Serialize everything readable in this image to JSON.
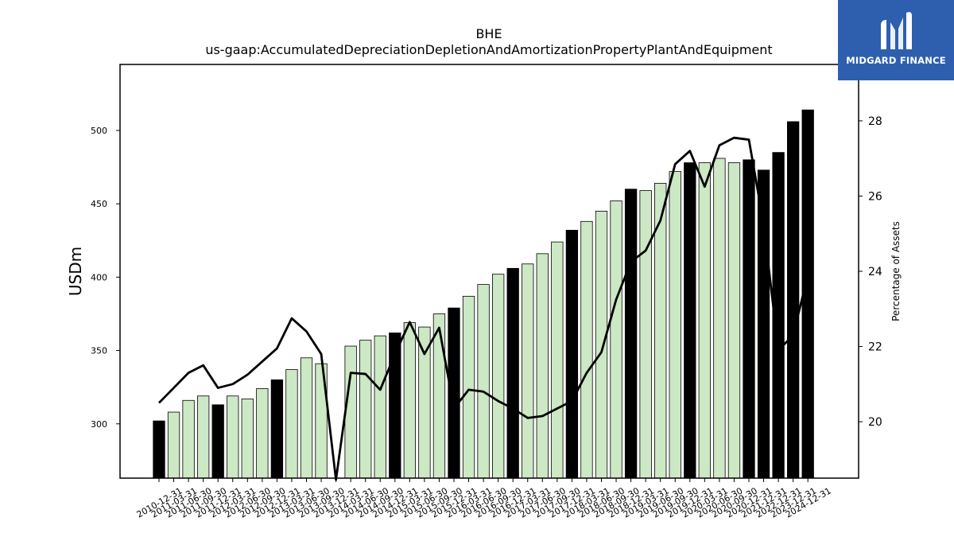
{
  "chart_data": {
    "type": "bar",
    "title": "BHE",
    "subtitle": "us-gaap:AccumulatedDepreciationDepletionAndAmortizationPropertyPlantAndEquipment",
    "ylabel": "USDm",
    "y2label": "Percentage of Assets",
    "ylim": [
      263,
      545
    ],
    "y2lim": [
      18.5,
      29.5
    ],
    "yticks": [
      300,
      350,
      400,
      450,
      500
    ],
    "y2ticks": [
      20,
      22,
      24,
      26,
      28
    ],
    "grid": false,
    "categories": [
      "2010-12-31",
      "2011-03-31",
      "2011-06-30",
      "2011-09-30",
      "2011-12-31",
      "2012-03-31",
      "2012-06-30",
      "2012-09-30",
      "2012-12-31",
      "2013-03-31",
      "2013-06-30",
      "2013-09-30",
      "2013-12-31",
      "2014-03-31",
      "2014-06-30",
      "2014-09-30",
      "2014-12-31",
      "2015-03-31",
      "2015-06-30",
      "2015-09-30",
      "2015-12-31",
      "2016-03-31",
      "2016-06-30",
      "2016-09-30",
      "2016-12-31",
      "2017-03-31",
      "2017-06-30",
      "2017-09-30",
      "2017-12-31",
      "2018-03-31",
      "2018-06-30",
      "2018-09-30",
      "2018-12-31",
      "2019-03-31",
      "2019-06-30",
      "2019-09-30",
      "2019-12-31",
      "2020-03-31",
      "2020-06-30",
      "2020-09-30",
      "2020-12-31",
      "2021-12-31",
      "2022-12-31",
      "2023-12-31",
      "2024-12-31"
    ],
    "series": [
      {
        "values": [
          302,
          308,
          316,
          319,
          313,
          319,
          317,
          324,
          330,
          337,
          345,
          341,
          null,
          353,
          357,
          360,
          362,
          369,
          366,
          375,
          379,
          387,
          395,
          402,
          406,
          409,
          416,
          424,
          432,
          438,
          445,
          452,
          460,
          459,
          464,
          472,
          478,
          478,
          481,
          478,
          480,
          473,
          485,
          506,
          514
        ],
        "annual_flags": [
          1,
          0,
          0,
          0,
          1,
          0,
          0,
          0,
          1,
          0,
          0,
          0,
          1,
          0,
          0,
          0,
          1,
          0,
          0,
          0,
          1,
          0,
          0,
          0,
          1,
          0,
          0,
          0,
          1,
          0,
          0,
          0,
          1,
          0,
          0,
          0,
          1,
          0,
          0,
          0,
          1,
          1,
          1,
          1,
          1
        ],
        "colors": {
          "annual": "#000000",
          "quarterly": "#cce8c4",
          "edge": "#000000"
        }
      },
      {
        "name": "Percentage of Assets",
        "axis": "right",
        "type": "line",
        "color": "#000000",
        "values": [
          20.5,
          20.9,
          21.3,
          21.5,
          20.9,
          21.0,
          21.25,
          21.6,
          21.95,
          22.75,
          22.4,
          21.8,
          null,
          21.3,
          21.27,
          20.85,
          21.8,
          22.65,
          21.8,
          22.5,
          20.35,
          20.85,
          20.8,
          20.55,
          20.35,
          20.1,
          20.15,
          20.35,
          20.55,
          21.3,
          21.85,
          23.25,
          24.25,
          24.55,
          25.35,
          26.85,
          27.2,
          26.25,
          27.35,
          27.55,
          27.5,
          25.25,
          21.9,
          22.3,
          23.9
        ]
      }
    ]
  },
  "brand": {
    "name": "MIDGARD FINANCE",
    "color": "#2d5fae"
  }
}
